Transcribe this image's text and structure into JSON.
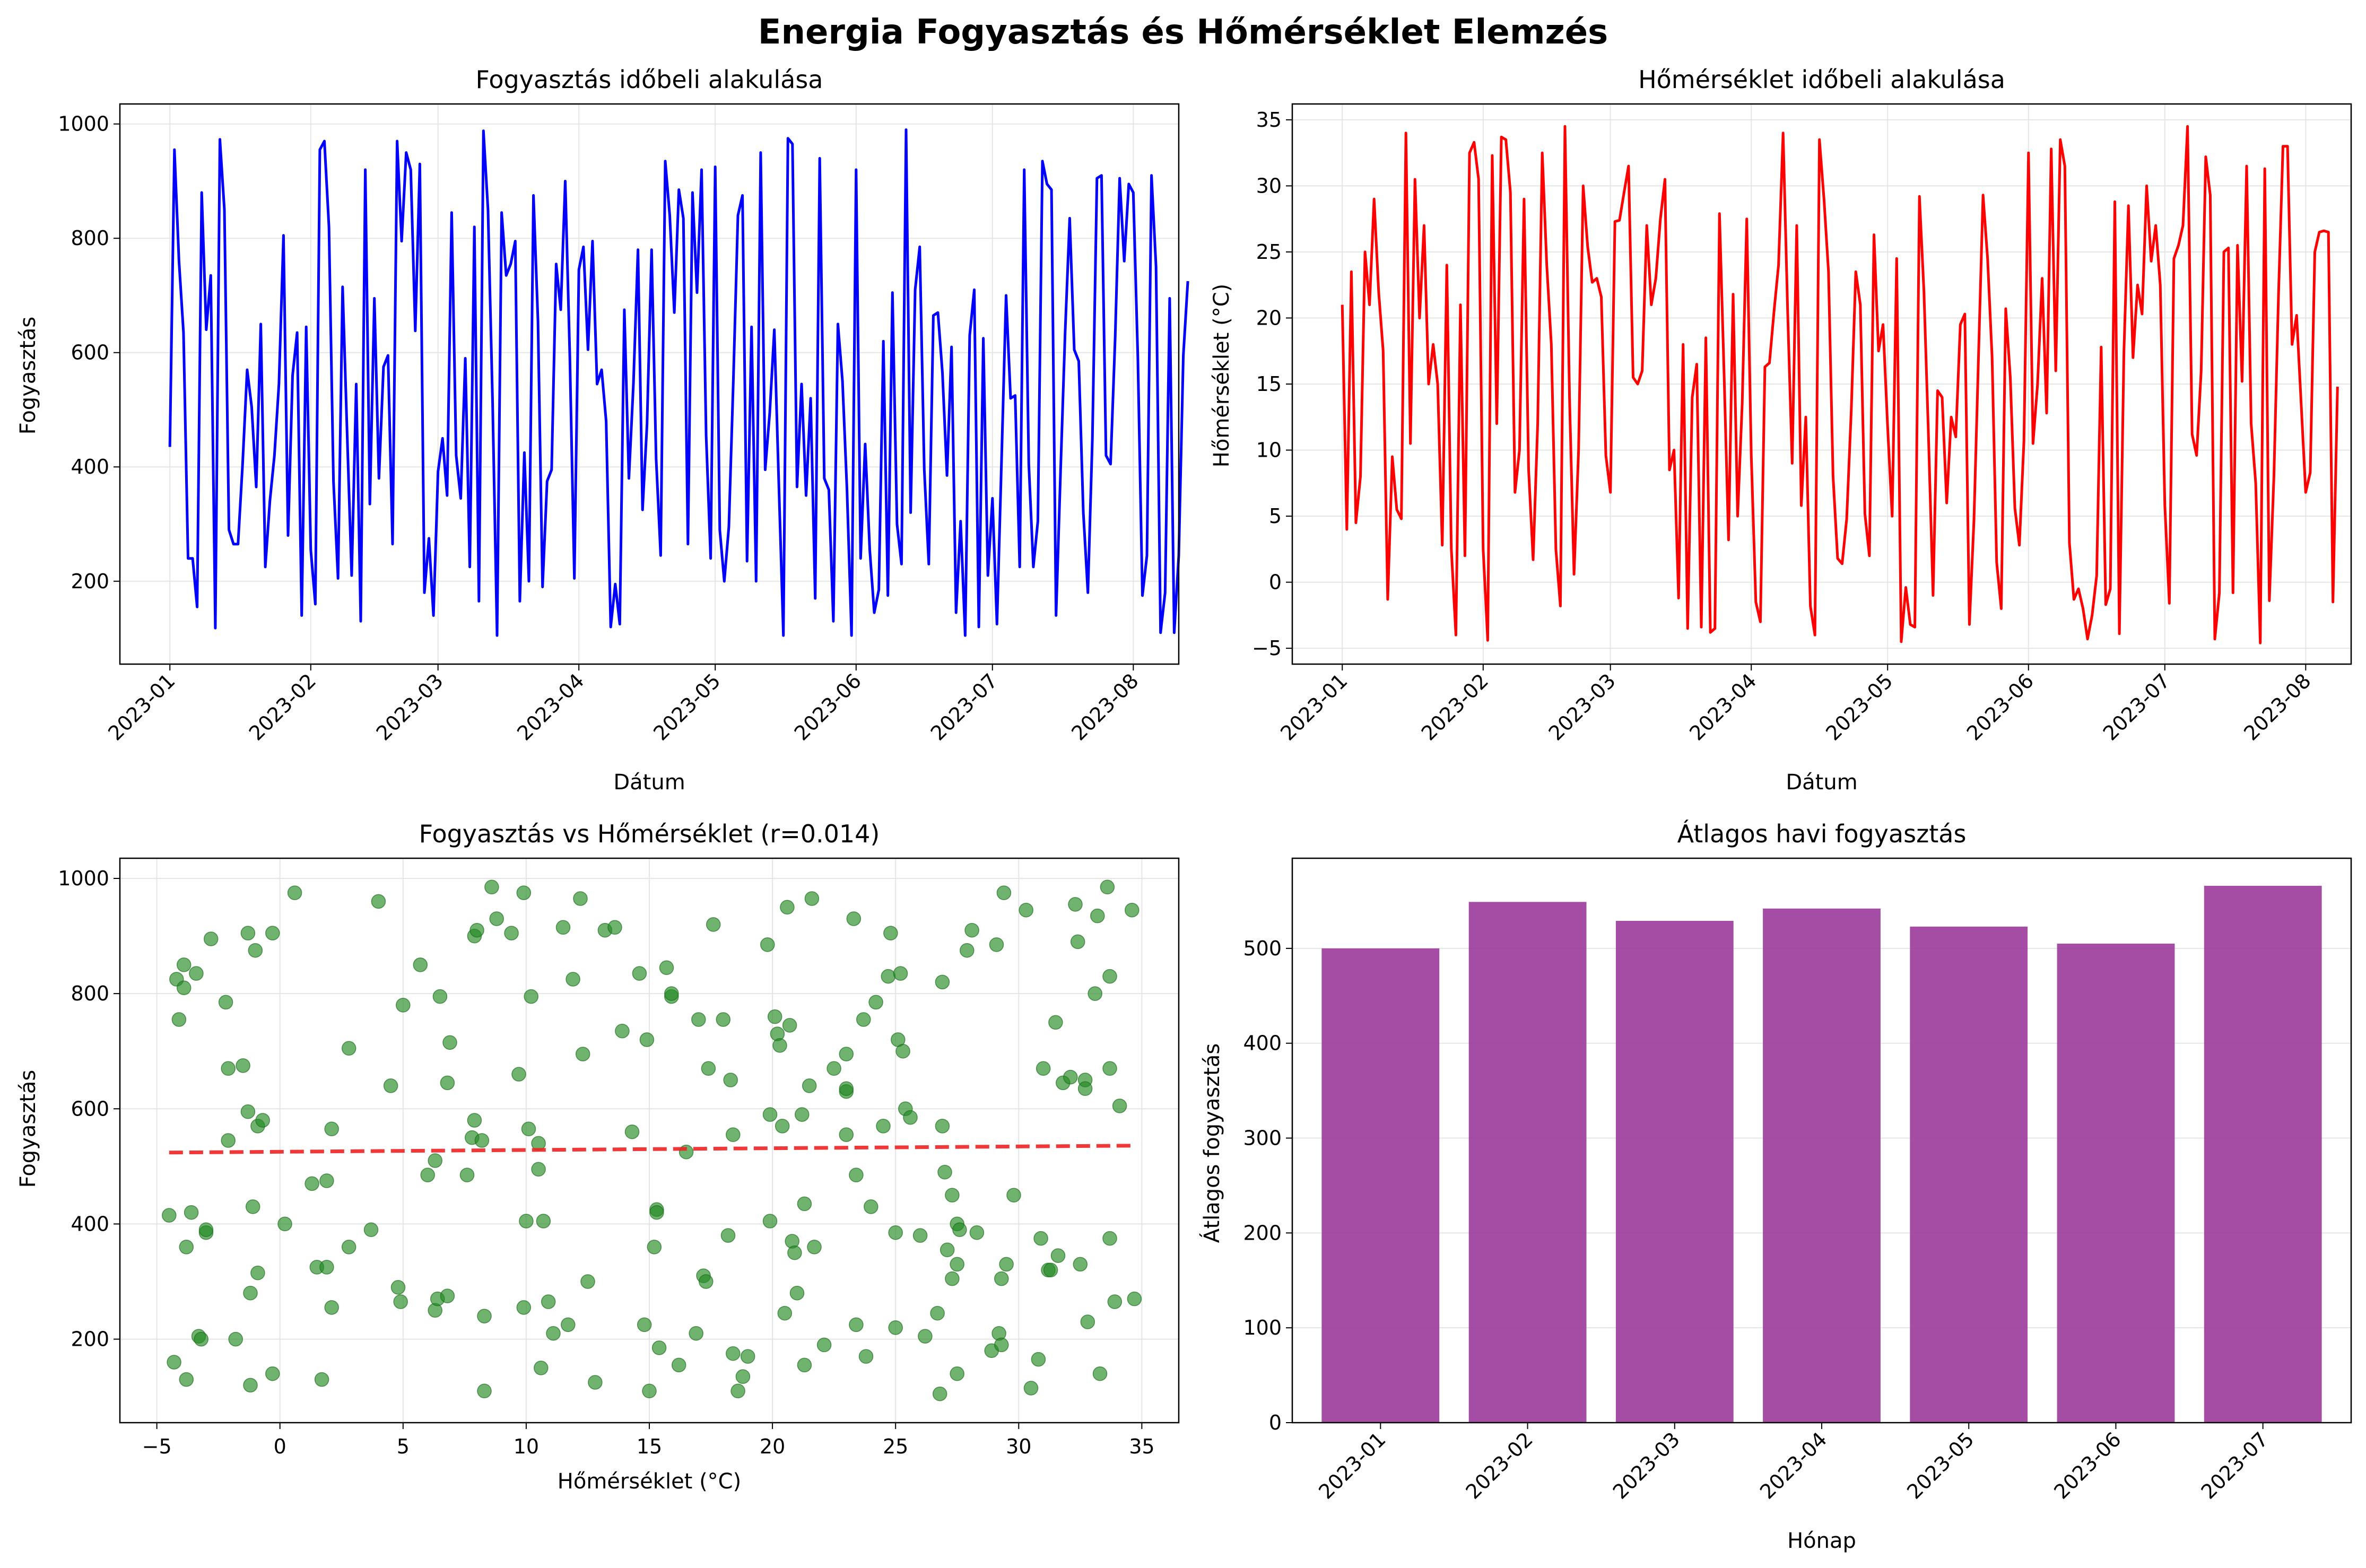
{
  "figure": {
    "title": "Energia Fogyasztás és Hőmérséklet Elemzés"
  },
  "colors": {
    "consumption_line": "#0000ff",
    "temperature_line": "#ff0000",
    "scatter_points": "#228b22",
    "trend_line": "#ee2222",
    "bars": "#9b3a9b",
    "grid": "#e5e5e5"
  },
  "chart_data": [
    {
      "type": "line",
      "title": "Fogyasztás időbeli alakulása",
      "xlabel": "Dátum",
      "ylabel": "Fogyasztás",
      "x_ticks": [
        "2023-01",
        "2023-02",
        "2023-03",
        "2023-04",
        "2023-05",
        "2023-06",
        "2023-07",
        "2023-08"
      ],
      "y_ticks": [
        "200",
        "400",
        "600",
        "800",
        "1000"
      ],
      "xlim": [
        "2022-12-21",
        "2023-08-11"
      ],
      "ylim": [
        55,
        1035
      ],
      "grid": true,
      "x_start": "2023-01-01",
      "x_step_days": 1,
      "values": [
        435,
        955,
        760,
        635,
        240,
        240,
        155,
        880,
        640,
        735,
        118,
        973,
        850,
        290,
        265,
        265,
        405,
        570,
        505,
        365,
        650,
        225,
        340,
        420,
        545,
        805,
        280,
        560,
        635,
        140,
        645,
        255,
        160,
        955,
        970,
        820,
        375,
        205,
        715,
        460,
        210,
        545,
        130,
        920,
        335,
        695,
        380,
        575,
        595,
        265,
        970,
        795,
        950,
        920,
        638,
        930,
        180,
        275,
        140,
        392,
        450,
        350,
        845,
        420,
        345,
        590,
        225,
        820,
        165,
        988,
        850,
        515,
        105,
        845,
        735,
        755,
        795,
        165,
        425,
        200,
        875,
        655,
        190,
        375,
        395,
        755,
        675,
        900,
        595,
        205,
        745,
        785,
        605,
        795,
        545,
        570,
        480,
        120,
        195,
        125,
        675,
        380,
        545,
        780,
        325,
        475,
        780,
        415,
        245,
        935,
        840,
        670,
        885,
        835,
        265,
        880,
        705,
        920,
        455,
        240,
        925,
        290,
        200,
        295,
        555,
        840,
        875,
        235,
        645,
        200,
        950,
        395,
        495,
        640,
        370,
        105,
        975,
        965,
        365,
        545,
        350,
        520,
        170,
        940,
        380,
        360,
        130,
        650,
        550,
        360,
        105,
        920,
        240,
        440,
        255,
        145,
        185,
        620,
        175,
        705,
        300,
        230,
        990,
        320,
        710,
        785,
        395,
        230,
        665,
        670,
        565,
        385,
        610,
        145,
        305,
        105,
        630,
        710,
        120,
        625,
        210,
        345,
        125,
        410,
        700,
        520,
        525,
        225,
        920,
        405,
        225,
        305,
        935,
        895,
        885,
        140,
        395,
        635,
        835,
        605,
        585,
        320,
        180,
        450,
        905,
        910,
        420,
        405,
        625,
        905,
        760,
        895,
        880,
        590,
        175,
        245,
        910,
        750,
        110,
        180,
        695,
        110,
        245,
        595,
        725
      ]
    },
    {
      "type": "line",
      "title": "Hőmérséklet időbeli alakulása",
      "xlabel": "Dátum",
      "ylabel": "Hőmérséklet (°C)",
      "x_ticks": [
        "2023-01",
        "2023-02",
        "2023-03",
        "2023-04",
        "2023-05",
        "2023-06",
        "2023-07",
        "2023-08"
      ],
      "y_ticks": [
        "−5",
        "0",
        "5",
        "10",
        "15",
        "20",
        "25",
        "30",
        "35"
      ],
      "xlim": [
        "2022-12-21",
        "2023-08-11"
      ],
      "ylim": [
        -6.2,
        36.2
      ],
      "grid": true,
      "x_start": "2023-01-01",
      "x_step_days": 1,
      "values": [
        21,
        4,
        23.5,
        4.5,
        8,
        25,
        21,
        29,
        22,
        17.5,
        -1.3,
        9.5,
        5.5,
        4.8,
        34,
        10.5,
        30.5,
        20,
        27,
        15,
        18,
        15,
        2.8,
        24,
        2.5,
        -4,
        21,
        2,
        32.5,
        33.3,
        30.5,
        2.5,
        -4.4,
        32.3,
        12,
        33.7,
        33.5,
        29.5,
        6.8,
        10,
        29,
        8.5,
        1.7,
        12,
        32.5,
        24,
        18,
        2.5,
        -1.8,
        34.5,
        14,
        0.6,
        10,
        30,
        25.4,
        22.7,
        23,
        21.6,
        9.6,
        6.8,
        27.3,
        27.4,
        29.5,
        31.5,
        15.5,
        15,
        16,
        27,
        21,
        23,
        27.5,
        30.5,
        8.5,
        10,
        -1.2,
        18,
        -3.5,
        14,
        16.5,
        -3.4,
        18.5,
        -3.8,
        -3.5,
        27.9,
        16,
        3.2,
        21.8,
        5,
        13.5,
        27.5,
        9.6,
        -1.5,
        -3,
        16.3,
        16.6,
        20.5,
        24,
        34,
        20.5,
        9,
        27,
        5.8,
        12.5,
        -1.8,
        -4,
        33.5,
        29,
        23.5,
        8,
        1.8,
        1.4,
        4.8,
        13,
        23.5,
        21,
        5.2,
        2,
        26.3,
        17.5,
        19.5,
        11.8,
        5,
        24.5,
        -4.5,
        -0.4,
        -3.2,
        -3.4,
        29.2,
        22,
        11,
        -1,
        14.5,
        14,
        6,
        12.5,
        11,
        19.5,
        20.3,
        -3.2,
        4.7,
        17,
        29.3,
        24.5,
        17,
        1.5,
        -2,
        20.7,
        15.5,
        5.6,
        2.8,
        10.7,
        32.5,
        10.5,
        15,
        23,
        12.8,
        32.8,
        16,
        33.5,
        31.5,
        3,
        -1.3,
        -0.5,
        -2,
        -4.3,
        -2.5,
        0.5,
        17.8,
        -1.7,
        -0.5,
        28.8,
        -3.9,
        17.5,
        28.5,
        17,
        22.5,
        20.3,
        30,
        24.3,
        27,
        22.5,
        5.8,
        -1.6,
        24.5,
        25.5,
        27,
        34.5,
        11.2,
        9.6,
        16,
        32.2,
        29.3,
        -4.3,
        -0.8,
        25,
        25.3,
        -0.8,
        25.5,
        15.2,
        31.5,
        12,
        7.5,
        -4.6,
        31.3,
        -1.4,
        8,
        21.5,
        33,
        33,
        18,
        20.2,
        13.5,
        6.8,
        8.3,
        25,
        26.5,
        26.6,
        26.5,
        -1.5,
        14.8
      ]
    },
    {
      "type": "scatter",
      "title": "Fogyasztás vs Hőmérséklet (r=0.014)",
      "xlabel": "Hőmérséklet (°C)",
      "ylabel": "Fogyasztás",
      "x_ticks": [
        "−5",
        "0",
        "5",
        "10",
        "15",
        "20",
        "25",
        "30",
        "35"
      ],
      "y_ticks": [
        "200",
        "400",
        "600",
        "800",
        "1000"
      ],
      "xlim": [
        -6.5,
        36.5
      ],
      "ylim": [
        55,
        1035
      ],
      "grid": true,
      "points": [
        [
          -4.5,
          415
        ],
        [
          -4.3,
          160
        ],
        [
          -4.2,
          825
        ],
        [
          -4.1,
          755
        ],
        [
          -3.9,
          850
        ],
        [
          -3.9,
          810
        ],
        [
          -3.8,
          130
        ],
        [
          -3.8,
          360
        ],
        [
          -3.6,
          420
        ],
        [
          -3.4,
          835
        ],
        [
          -3.3,
          205
        ],
        [
          -3.2,
          200
        ],
        [
          -3,
          385
        ],
        [
          -3,
          390
        ],
        [
          -2.8,
          895
        ],
        [
          -2.2,
          785
        ],
        [
          -2.1,
          670
        ],
        [
          -2.1,
          545
        ],
        [
          -1.8,
          200
        ],
        [
          -1.5,
          675
        ],
        [
          -1.3,
          905
        ],
        [
          -1.3,
          595
        ],
        [
          -1.2,
          280
        ],
        [
          -1.2,
          120
        ],
        [
          -1.1,
          430
        ],
        [
          -1.0,
          875
        ],
        [
          -0.9,
          570
        ],
        [
          -0.9,
          315
        ],
        [
          -0.7,
          580
        ],
        [
          -0.3,
          905
        ],
        [
          -0.3,
          140
        ],
        [
          0.2,
          400
        ],
        [
          0.6,
          975
        ],
        [
          1.3,
          470
        ],
        [
          1.5,
          325
        ],
        [
          1.7,
          130
        ],
        [
          1.9,
          325
        ],
        [
          1.9,
          475
        ],
        [
          2.1,
          565
        ],
        [
          2.1,
          255
        ],
        [
          2.8,
          705
        ],
        [
          2.8,
          360
        ],
        [
          3.7,
          390
        ],
        [
          4.0,
          960
        ],
        [
          4.5,
          640
        ],
        [
          4.8,
          290
        ],
        [
          4.9,
          265
        ],
        [
          5.0,
          780
        ],
        [
          5.7,
          850
        ],
        [
          6.0,
          485
        ],
        [
          6.3,
          250
        ],
        [
          6.3,
          510
        ],
        [
          6.4,
          270
        ],
        [
          6.5,
          795
        ],
        [
          6.8,
          645
        ],
        [
          6.8,
          275
        ],
        [
          6.9,
          715
        ],
        [
          7.6,
          485
        ],
        [
          7.8,
          550
        ],
        [
          7.9,
          580
        ],
        [
          7.9,
          900
        ],
        [
          8.0,
          910
        ],
        [
          8.2,
          545
        ],
        [
          8.3,
          240
        ],
        [
          8.3,
          110
        ],
        [
          8.6,
          985
        ],
        [
          8.8,
          930
        ],
        [
          9.4,
          905
        ],
        [
          9.7,
          660
        ],
        [
          9.9,
          975
        ],
        [
          9.9,
          255
        ],
        [
          10.0,
          405
        ],
        [
          10.1,
          565
        ],
        [
          10.2,
          795
        ],
        [
          10.5,
          540
        ],
        [
          10.5,
          495
        ],
        [
          10.6,
          150
        ],
        [
          10.7,
          405
        ],
        [
          10.9,
          265
        ],
        [
          11.1,
          210
        ],
        [
          11.5,
          915
        ],
        [
          11.7,
          225
        ],
        [
          11.9,
          825
        ],
        [
          12.2,
          965
        ],
        [
          12.3,
          695
        ],
        [
          12.5,
          300
        ],
        [
          12.8,
          125
        ],
        [
          13.2,
          910
        ],
        [
          13.6,
          915
        ],
        [
          13.9,
          735
        ],
        [
          14.3,
          560
        ],
        [
          14.6,
          835
        ],
        [
          14.8,
          225
        ],
        [
          14.9,
          720
        ],
        [
          15.0,
          110
        ],
        [
          15.2,
          360
        ],
        [
          15.3,
          425
        ],
        [
          15.3,
          420
        ],
        [
          15.4,
          185
        ],
        [
          15.7,
          845
        ],
        [
          15.9,
          795
        ],
        [
          15.9,
          800
        ],
        [
          16.2,
          155
        ],
        [
          16.5,
          525
        ],
        [
          16.9,
          210
        ],
        [
          17.0,
          755
        ],
        [
          17.2,
          310
        ],
        [
          17.3,
          300
        ],
        [
          17.4,
          670
        ],
        [
          17.6,
          920
        ],
        [
          18.0,
          755
        ],
        [
          18.2,
          380
        ],
        [
          18.3,
          650
        ],
        [
          18.4,
          555
        ],
        [
          18.4,
          175
        ],
        [
          18.6,
          110
        ],
        [
          18.8,
          135
        ],
        [
          19.0,
          170
        ],
        [
          19.8,
          885
        ],
        [
          19.9,
          590
        ],
        [
          19.9,
          405
        ],
        [
          20.1,
          760
        ],
        [
          20.2,
          730
        ],
        [
          20.3,
          710
        ],
        [
          20.4,
          570
        ],
        [
          20.5,
          245
        ],
        [
          20.6,
          950
        ],
        [
          20.7,
          745
        ],
        [
          20.8,
          370
        ],
        [
          20.9,
          350
        ],
        [
          21.0,
          280
        ],
        [
          21.2,
          590
        ],
        [
          21.3,
          155
        ],
        [
          21.3,
          435
        ],
        [
          21.5,
          640
        ],
        [
          21.6,
          965
        ],
        [
          21.7,
          360
        ],
        [
          22.1,
          190
        ],
        [
          22.5,
          670
        ],
        [
          23.0,
          630
        ],
        [
          23.0,
          695
        ],
        [
          23.0,
          635
        ],
        [
          23.0,
          555
        ],
        [
          23.3,
          930
        ],
        [
          23.4,
          485
        ],
        [
          23.4,
          225
        ],
        [
          23.7,
          755
        ],
        [
          23.8,
          170
        ],
        [
          24.0,
          430
        ],
        [
          24.2,
          785
        ],
        [
          24.5,
          570
        ],
        [
          24.7,
          830
        ],
        [
          24.8,
          905
        ],
        [
          25.0,
          385
        ],
        [
          25.0,
          220
        ],
        [
          25.1,
          720
        ],
        [
          25.2,
          835
        ],
        [
          25.3,
          700
        ],
        [
          25.4,
          600
        ],
        [
          25.6,
          585
        ],
        [
          26.0,
          380
        ],
        [
          26.2,
          205
        ],
        [
          26.7,
          245
        ],
        [
          26.8,
          105
        ],
        [
          26.9,
          820
        ],
        [
          26.9,
          570
        ],
        [
          27.0,
          490
        ],
        [
          27.1,
          355
        ],
        [
          27.3,
          450
        ],
        [
          27.3,
          305
        ],
        [
          27.5,
          330
        ],
        [
          27.5,
          400
        ],
        [
          27.5,
          140
        ],
        [
          27.6,
          390
        ],
        [
          27.9,
          875
        ],
        [
          28.1,
          910
        ],
        [
          28.3,
          385
        ],
        [
          28.9,
          180
        ],
        [
          29.1,
          885
        ],
        [
          29.2,
          210
        ],
        [
          29.3,
          190
        ],
        [
          29.3,
          305
        ],
        [
          29.4,
          975
        ],
        [
          29.5,
          330
        ],
        [
          29.8,
          450
        ],
        [
          30.3,
          945
        ],
        [
          30.5,
          115
        ],
        [
          30.8,
          165
        ],
        [
          30.9,
          375
        ],
        [
          31.0,
          670
        ],
        [
          31.2,
          320
        ],
        [
          31.3,
          320
        ],
        [
          31.5,
          750
        ],
        [
          31.6,
          345
        ],
        [
          31.8,
          645
        ],
        [
          32.1,
          655
        ],
        [
          32.3,
          955
        ],
        [
          32.4,
          890
        ],
        [
          32.5,
          330
        ],
        [
          32.7,
          650
        ],
        [
          32.7,
          635
        ],
        [
          32.8,
          230
        ],
        [
          33.1,
          800
        ],
        [
          33.2,
          935
        ],
        [
          33.3,
          140
        ],
        [
          33.6,
          985
        ],
        [
          33.7,
          830
        ],
        [
          33.7,
          670
        ],
        [
          33.7,
          375
        ],
        [
          33.9,
          265
        ],
        [
          34.1,
          605
        ],
        [
          34.6,
          945
        ],
        [
          34.7,
          270
        ]
      ],
      "trend": {
        "x": [
          -4.5,
          34.7
        ],
        "y": [
          524,
          536
        ]
      }
    },
    {
      "type": "bar",
      "title": "Átlagos havi fogyasztás",
      "xlabel": "Hónap",
      "ylabel": "Átlagos fogyasztás",
      "categories": [
        "2023-01",
        "2023-02",
        "2023-03",
        "2023-04",
        "2023-05",
        "2023-06",
        "2023-07"
      ],
      "values": [
        500,
        549,
        529,
        542,
        523,
        505,
        566
      ],
      "y_ticks": [
        "0",
        "100",
        "200",
        "300",
        "400",
        "500"
      ],
      "ylim": [
        0,
        595
      ],
      "grid": true
    }
  ]
}
